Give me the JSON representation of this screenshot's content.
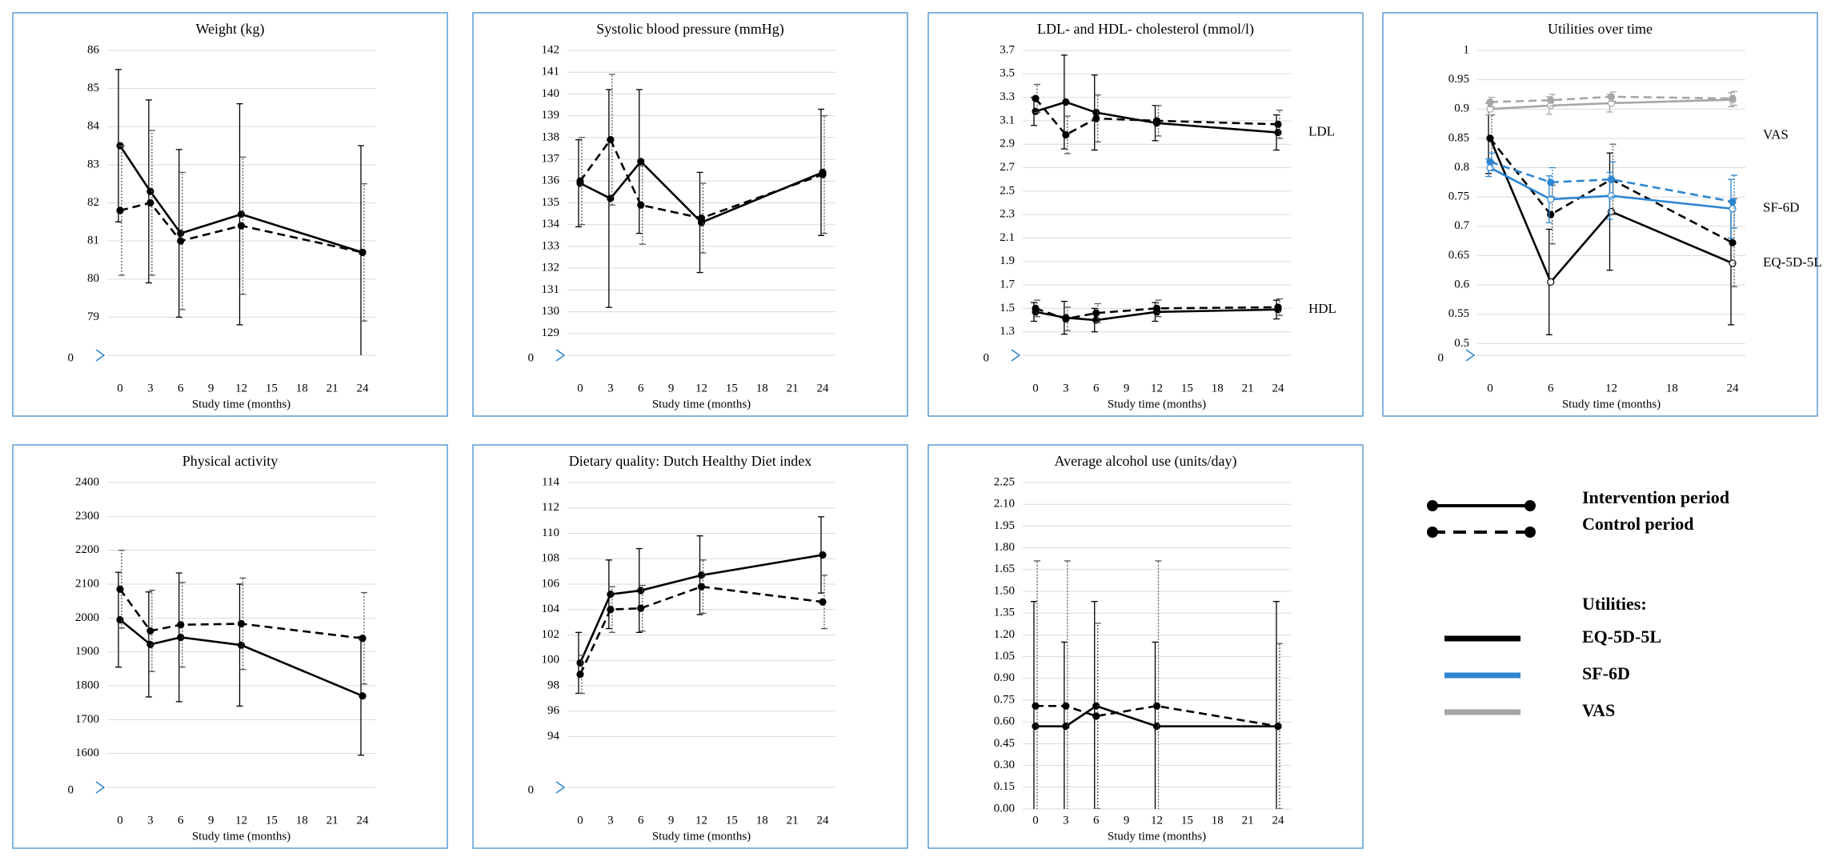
{
  "chart_data": [
    {
      "type": "line",
      "title": "Weight (kg)",
      "xlabel": "Study time (months)",
      "x": [
        0,
        3,
        6,
        12,
        24
      ],
      "xlim": [
        0,
        24
      ],
      "xticks": [
        0,
        3,
        6,
        9,
        12,
        15,
        18,
        21,
        24
      ],
      "ylim": [
        78,
        86
      ],
      "yticks": [
        79,
        80,
        81,
        82,
        83,
        84,
        85,
        86
      ],
      "break_label": 0,
      "series": [
        {
          "color": "#000000",
          "dash": false,
          "marker": "filled",
          "values": [
            83.5,
            82.3,
            81.2,
            81.7,
            80.7
          ],
          "errors": [
            2.0,
            2.4,
            2.2,
            2.9,
            2.8
          ]
        },
        {
          "color": "#000000",
          "dash": true,
          "marker": "filled",
          "values": [
            81.8,
            82.0,
            81.0,
            81.4,
            80.7
          ],
          "errors": [
            1.7,
            1.9,
            1.8,
            1.8,
            1.8
          ]
        }
      ]
    },
    {
      "type": "line",
      "title": "Systolic blood pressure (mmHg)",
      "xlabel": "Study time (months)",
      "x": [
        0,
        3,
        6,
        12,
        24
      ],
      "xlim": [
        0,
        24
      ],
      "xticks": [
        0,
        3,
        6,
        9,
        12,
        15,
        18,
        21,
        24
      ],
      "ylim": [
        128,
        142
      ],
      "yticks": [
        129,
        130,
        131,
        132,
        133,
        134,
        135,
        136,
        137,
        138,
        139,
        140,
        141,
        142
      ],
      "break_label": 0,
      "series": [
        {
          "color": "#000000",
          "dash": false,
          "marker": "filled",
          "values": [
            135.9,
            135.2,
            136.9,
            134.1,
            136.4
          ],
          "errors": [
            2.0,
            5.0,
            3.3,
            2.3,
            2.9
          ]
        },
        {
          "color": "#000000",
          "dash": true,
          "marker": "filled",
          "values": [
            136.0,
            137.9,
            134.9,
            134.3,
            136.3
          ],
          "errors": [
            2.0,
            3.0,
            1.8,
            1.6,
            2.7
          ]
        }
      ]
    },
    {
      "type": "line",
      "title": "LDL- and HDL- cholesterol (mmol/l)",
      "xlabel": "Study time (months)",
      "x": [
        0,
        3,
        6,
        12,
        24
      ],
      "xlim": [
        0,
        24
      ],
      "xticks": [
        0,
        3,
        6,
        9,
        12,
        15,
        18,
        21,
        24
      ],
      "ylim": [
        1.1,
        3.7
      ],
      "yticks": [
        1.3,
        1.5,
        1.7,
        1.9,
        2.1,
        2.3,
        2.5,
        2.7,
        2.9,
        3.1,
        3.3,
        3.5,
        3.7
      ],
      "break_label": 0,
      "annotations": [
        "LDL",
        "HDL"
      ],
      "series": [
        {
          "color": "#000000",
          "dash": false,
          "marker": "filled",
          "values": [
            3.18,
            3.26,
            3.17,
            3.08,
            3.0
          ],
          "errors": [
            0.12,
            0.4,
            0.32,
            0.15,
            0.15
          ]
        },
        {
          "color": "#000000",
          "dash": true,
          "marker": "filled",
          "values": [
            3.29,
            2.98,
            3.12,
            3.1,
            3.07
          ],
          "errors": [
            0.12,
            0.16,
            0.2,
            0.13,
            0.12
          ]
        },
        {
          "color": "#000000",
          "dash": false,
          "marker": "filled",
          "values": [
            1.47,
            1.42,
            1.4,
            1.47,
            1.49
          ],
          "errors": [
            0.08,
            0.14,
            0.1,
            0.08,
            0.08
          ]
        },
        {
          "color": "#000000",
          "dash": true,
          "marker": "filled",
          "values": [
            1.5,
            1.41,
            1.46,
            1.5,
            1.51
          ],
          "errors": [
            0.07,
            0.1,
            0.08,
            0.07,
            0.07
          ]
        }
      ]
    },
    {
      "type": "line",
      "title": "Utilities over time",
      "xlabel": "Study time (months)",
      "x": [
        0,
        6,
        12,
        24
      ],
      "xlim": [
        0,
        24
      ],
      "xticks": [
        0,
        6,
        12,
        18,
        24
      ],
      "ylim": [
        0.48,
        1
      ],
      "yticks": [
        0.5,
        0.55,
        0.6,
        0.65,
        0.7,
        0.75,
        0.8,
        0.85,
        0.9,
        0.95,
        1
      ],
      "break_label": 0,
      "annotations": [
        "VAS",
        "SF-6D",
        "EQ-5D-5L"
      ],
      "series": [
        {
          "color": "#000000",
          "dash": false,
          "marker": "open",
          "values": [
            0.85,
            0.605,
            0.725,
            0.637
          ],
          "errors": [
            0.06,
            0.09,
            0.1,
            0.105
          ]
        },
        {
          "color": "#000000",
          "dash": true,
          "marker": "filled",
          "values": [
            0.85,
            0.72,
            0.78,
            0.672
          ],
          "errors": [
            0.04,
            0.05,
            0.06,
            0.075
          ]
        },
        {
          "color": "#2e86d1",
          "dash": false,
          "marker": "open",
          "values": [
            0.8,
            0.746,
            0.752,
            0.73
          ],
          "errors": [
            0.015,
            0.04,
            0.04,
            0.05
          ]
        },
        {
          "color": "#2e86d1",
          "dash": true,
          "marker": "filled",
          "values": [
            0.81,
            0.775,
            0.78,
            0.742
          ],
          "errors": [
            0.015,
            0.025,
            0.03,
            0.045
          ]
        },
        {
          "color": "#a6a6a6",
          "dash": false,
          "marker": "open",
          "values": [
            0.9,
            0.906,
            0.91,
            0.916
          ],
          "errors": [
            0.01,
            0.015,
            0.015,
            0.012
          ]
        },
        {
          "color": "#a6a6a6",
          "dash": true,
          "marker": "filled",
          "values": [
            0.912,
            0.915,
            0.921,
            0.918
          ],
          "errors": [
            0.008,
            0.01,
            0.008,
            0.012
          ]
        }
      ]
    },
    {
      "type": "line",
      "title": "Physical activity",
      "xlabel": "Study time (months)",
      "x": [
        0,
        3,
        6,
        12,
        24
      ],
      "xlim": [
        0,
        24
      ],
      "xticks": [
        0,
        3,
        6,
        9,
        12,
        15,
        18,
        21,
        24
      ],
      "ylim": [
        1500,
        2400
      ],
      "yticks": [
        1600,
        1700,
        1800,
        1900,
        2000,
        2100,
        2200,
        2300,
        2400
      ],
      "break_label": 0,
      "series": [
        {
          "color": "#000000",
          "dash": false,
          "marker": "filled",
          "values": [
            1995,
            1922,
            1943,
            1920,
            1770
          ],
          "errors": [
            140,
            155,
            190,
            180,
            175
          ]
        },
        {
          "color": "#000000",
          "dash": true,
          "marker": "filled",
          "values": [
            2085,
            1962,
            1980,
            1983,
            1940
          ],
          "errors": [
            115,
            120,
            125,
            135,
            135
          ]
        }
      ]
    },
    {
      "type": "line",
      "title": "Dietary quality:  Dutch Healthy Diet index",
      "xlabel": "Study time (months)",
      "x": [
        0,
        3,
        6,
        12,
        24
      ],
      "xlim": [
        0,
        24
      ],
      "xticks": [
        0,
        3,
        6,
        9,
        12,
        15,
        18,
        21,
        24
      ],
      "ylim": [
        90,
        114
      ],
      "yticks": [
        94,
        96,
        98,
        100,
        102,
        104,
        106,
        108,
        110,
        112,
        114
      ],
      "break_label": 0,
      "series": [
        {
          "color": "#000000",
          "dash": false,
          "marker": "filled",
          "values": [
            99.8,
            105.2,
            105.5,
            106.7,
            108.3
          ],
          "errors": [
            2.4,
            2.7,
            3.3,
            3.1,
            3.0
          ]
        },
        {
          "color": "#000000",
          "dash": true,
          "marker": "filled",
          "values": [
            98.9,
            104.0,
            104.1,
            105.8,
            104.6
          ],
          "errors": [
            1.5,
            1.8,
            1.8,
            2.1,
            2.1
          ]
        }
      ]
    },
    {
      "type": "line",
      "title": "Average alcohol use (units/day)",
      "xlabel": "Study time (months)",
      "x": [
        0,
        3,
        6,
        12,
        24
      ],
      "xlim": [
        0,
        24
      ],
      "xticks": [
        0,
        3,
        6,
        9,
        12,
        15,
        18,
        21,
        24
      ],
      "ylim": [
        0,
        2.25
      ],
      "yticks": [
        {
          "value": 0,
          "label": "0.00"
        },
        {
          "value": 0.15,
          "label": "0.15"
        },
        {
          "value": 0.3,
          "label": "0.30"
        },
        {
          "value": 0.45,
          "label": "0.45"
        },
        {
          "value": 0.6,
          "label": "0.60"
        },
        {
          "value": 0.75,
          "label": "0.75"
        },
        {
          "value": 0.9,
          "label": "0.90"
        },
        {
          "value": 1.05,
          "label": "1.05"
        },
        {
          "value": 1.2,
          "label": "1.20"
        },
        {
          "value": 1.35,
          "label": "1.35"
        },
        {
          "value": 1.5,
          "label": "1.50"
        },
        {
          "value": 1.65,
          "label": "1.65"
        },
        {
          "value": 1.8,
          "label": "1.80"
        },
        {
          "value": 1.95,
          "label": "1.95"
        },
        {
          "value": 2.1,
          "label": "2.10"
        },
        {
          "value": 2.25,
          "label": "2.25"
        }
      ],
      "series": [
        {
          "color": "#000000",
          "dash": false,
          "marker": "filled",
          "values": [
            0.57,
            0.57,
            0.71,
            0.57,
            0.57
          ],
          "errors": [
            0.86,
            0.58,
            0.72,
            0.58,
            0.86
          ]
        },
        {
          "color": "#000000",
          "dash": true,
          "marker": "filled",
          "values": [
            0.71,
            0.71,
            0.64,
            0.71,
            0.57
          ],
          "errors": [
            1.0,
            1.0,
            0.64,
            1.0,
            0.57
          ]
        }
      ]
    }
  ],
  "legend": {
    "periods": [
      {
        "label": "Intervention period",
        "color": "#000000",
        "dash": false
      },
      {
        "label": "Control period",
        "color": "#000000",
        "dash": true
      }
    ],
    "utilities_title": "Utilities:",
    "utilities": [
      {
        "label": "EQ-5D-5L",
        "color": "#000000"
      },
      {
        "label": "SF-6D",
        "color": "#2e86d1"
      },
      {
        "label": "VAS",
        "color": "#a6a6a6"
      }
    ]
  }
}
